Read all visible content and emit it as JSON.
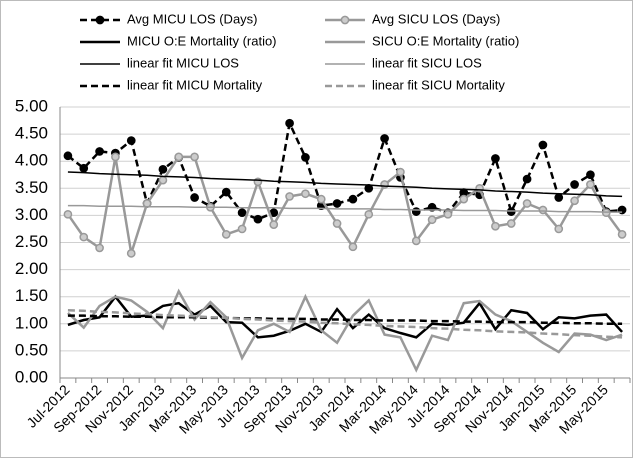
{
  "chart_data": {
    "type": "line",
    "categories": [
      "Jul-2012",
      null,
      "Sep-2012",
      null,
      "Nov-2012",
      null,
      "Jan-2013",
      null,
      "Mar-2013",
      null,
      "May-2013",
      null,
      "Jul-2013",
      null,
      "Sep-2013",
      null,
      "Nov-2013",
      null,
      "Jan-2014",
      null,
      "Mar-2014",
      null,
      "May-2014",
      null,
      "Jul-2014",
      null,
      "Sep-2014",
      null,
      "Nov-2014",
      null,
      "Jan-2015",
      null,
      "Mar-2015",
      null,
      "May-2015",
      null
    ],
    "ylim": [
      0,
      5
    ],
    "yticks": [
      {
        "value": 0,
        "label": "0.00"
      },
      {
        "value": 0.5,
        "label": "0.50"
      },
      {
        "value": 1,
        "label": "1.00"
      },
      {
        "value": 1.5,
        "label": "1.50"
      },
      {
        "value": 2,
        "label": "2.00"
      },
      {
        "value": 2.5,
        "label": "2.50"
      },
      {
        "value": 3,
        "label": "3.00"
      },
      {
        "value": 3.5,
        "label": "3.50"
      },
      {
        "value": 4,
        "label": "4.00"
      },
      {
        "value": 4.5,
        "label": "4.50"
      },
      {
        "value": 5,
        "label": "5.00"
      }
    ],
    "grid": true,
    "series": [
      {
        "name": "Avg MICU LOS (Days)",
        "color": "#000000",
        "marker": true,
        "dash": true,
        "width": 2.5,
        "values": [
          4.1,
          3.87,
          4.18,
          4.15,
          4.38,
          3.22,
          3.85,
          4.07,
          3.33,
          3.17,
          3.43,
          3.05,
          2.93,
          3.05,
          4.7,
          4.07,
          3.18,
          3.22,
          3.3,
          3.5,
          4.42,
          3.7,
          3.07,
          3.15,
          3.05,
          3.42,
          3.38,
          4.05,
          3.07,
          3.67,
          4.3,
          3.33,
          3.57,
          3.75,
          3.07,
          3.1
        ]
      },
      {
        "name": "Avg SICU LOS (Days)",
        "color": "#999999",
        "marker": true,
        "dash": false,
        "width": 2.5,
        "values": [
          3.02,
          2.6,
          2.4,
          4.08,
          2.3,
          3.22,
          3.65,
          4.08,
          4.08,
          3.15,
          2.65,
          2.75,
          3.62,
          2.83,
          3.35,
          3.4,
          3.3,
          2.85,
          2.42,
          3.02,
          3.57,
          3.8,
          2.53,
          2.92,
          3.02,
          3.3,
          3.5,
          2.8,
          2.85,
          3.22,
          3.1,
          2.75,
          3.27,
          3.57,
          3.05,
          2.65
        ]
      },
      {
        "name": "MICU O:E Mortality (ratio)",
        "color": "#000000",
        "marker": false,
        "dash": false,
        "width": 2.5,
        "values": [
          0.98,
          1.07,
          1.12,
          1.5,
          1.13,
          1.15,
          1.33,
          1.38,
          1.17,
          1.33,
          1.03,
          1.02,
          0.75,
          0.78,
          0.87,
          1.0,
          0.85,
          1.27,
          0.92,
          1.17,
          0.92,
          0.83,
          0.75,
          1.0,
          0.98,
          1.02,
          1.38,
          0.9,
          1.25,
          1.2,
          0.9,
          1.12,
          1.1,
          1.15,
          1.17,
          0.85
        ]
      },
      {
        "name": "SICU O:E Mortality (ratio)",
        "color": "#999999",
        "marker": false,
        "dash": false,
        "width": 2.5,
        "values": [
          1.2,
          0.93,
          1.33,
          1.5,
          1.43,
          1.22,
          0.92,
          1.6,
          1.08,
          1.4,
          1.12,
          0.37,
          0.88,
          1.0,
          0.85,
          1.5,
          0.88,
          0.65,
          1.15,
          1.43,
          0.8,
          0.75,
          0.15,
          0.78,
          0.7,
          1.38,
          1.42,
          1.17,
          1.05,
          0.85,
          0.65,
          0.48,
          0.82,
          0.8,
          0.7,
          0.8
        ]
      },
      {
        "name": "linear fit MICU LOS",
        "color": "#000000",
        "marker": false,
        "dash": false,
        "width": 1.5,
        "values": [
          3.8,
          3.79,
          3.77,
          3.76,
          3.75,
          3.74,
          3.72,
          3.71,
          3.7,
          3.68,
          3.67,
          3.66,
          3.65,
          3.63,
          3.62,
          3.61,
          3.59,
          3.58,
          3.57,
          3.56,
          3.54,
          3.53,
          3.52,
          3.5,
          3.49,
          3.48,
          3.47,
          3.45,
          3.44,
          3.43,
          3.41,
          3.4,
          3.39,
          3.38,
          3.36,
          3.35
        ]
      },
      {
        "name": "linear fit SICU LOS",
        "color": "#999999",
        "marker": false,
        "dash": false,
        "width": 1.5,
        "values": [
          3.18,
          3.18,
          3.17,
          3.17,
          3.17,
          3.16,
          3.16,
          3.16,
          3.15,
          3.15,
          3.15,
          3.14,
          3.14,
          3.14,
          3.13,
          3.13,
          3.13,
          3.12,
          3.12,
          3.12,
          3.11,
          3.11,
          3.1,
          3.1,
          3.1,
          3.09,
          3.09,
          3.09,
          3.08,
          3.08,
          3.08,
          3.07,
          3.07,
          3.07,
          3.06,
          3.06
        ]
      },
      {
        "name": "linear fit MICU Mortality",
        "color": "#000000",
        "marker": false,
        "dash": true,
        "width": 2.5,
        "values": [
          1.15,
          1.15,
          1.14,
          1.14,
          1.13,
          1.13,
          1.12,
          1.12,
          1.12,
          1.11,
          1.11,
          1.1,
          1.1,
          1.09,
          1.09,
          1.09,
          1.08,
          1.08,
          1.07,
          1.07,
          1.06,
          1.06,
          1.06,
          1.05,
          1.05,
          1.04,
          1.04,
          1.03,
          1.03,
          1.03,
          1.02,
          1.02,
          1.01,
          1.01,
          1.0,
          1.0
        ]
      },
      {
        "name": "linear fit SICU Mortality",
        "color": "#999999",
        "marker": false,
        "dash": true,
        "width": 2.5,
        "values": [
          1.25,
          1.24,
          1.22,
          1.21,
          1.19,
          1.18,
          1.16,
          1.15,
          1.14,
          1.12,
          1.11,
          1.09,
          1.08,
          1.06,
          1.05,
          1.04,
          1.02,
          1.01,
          0.99,
          0.98,
          0.96,
          0.95,
          0.94,
          0.92,
          0.91,
          0.89,
          0.88,
          0.86,
          0.85,
          0.84,
          0.82,
          0.81,
          0.79,
          0.78,
          0.76,
          0.75
        ]
      }
    ]
  }
}
